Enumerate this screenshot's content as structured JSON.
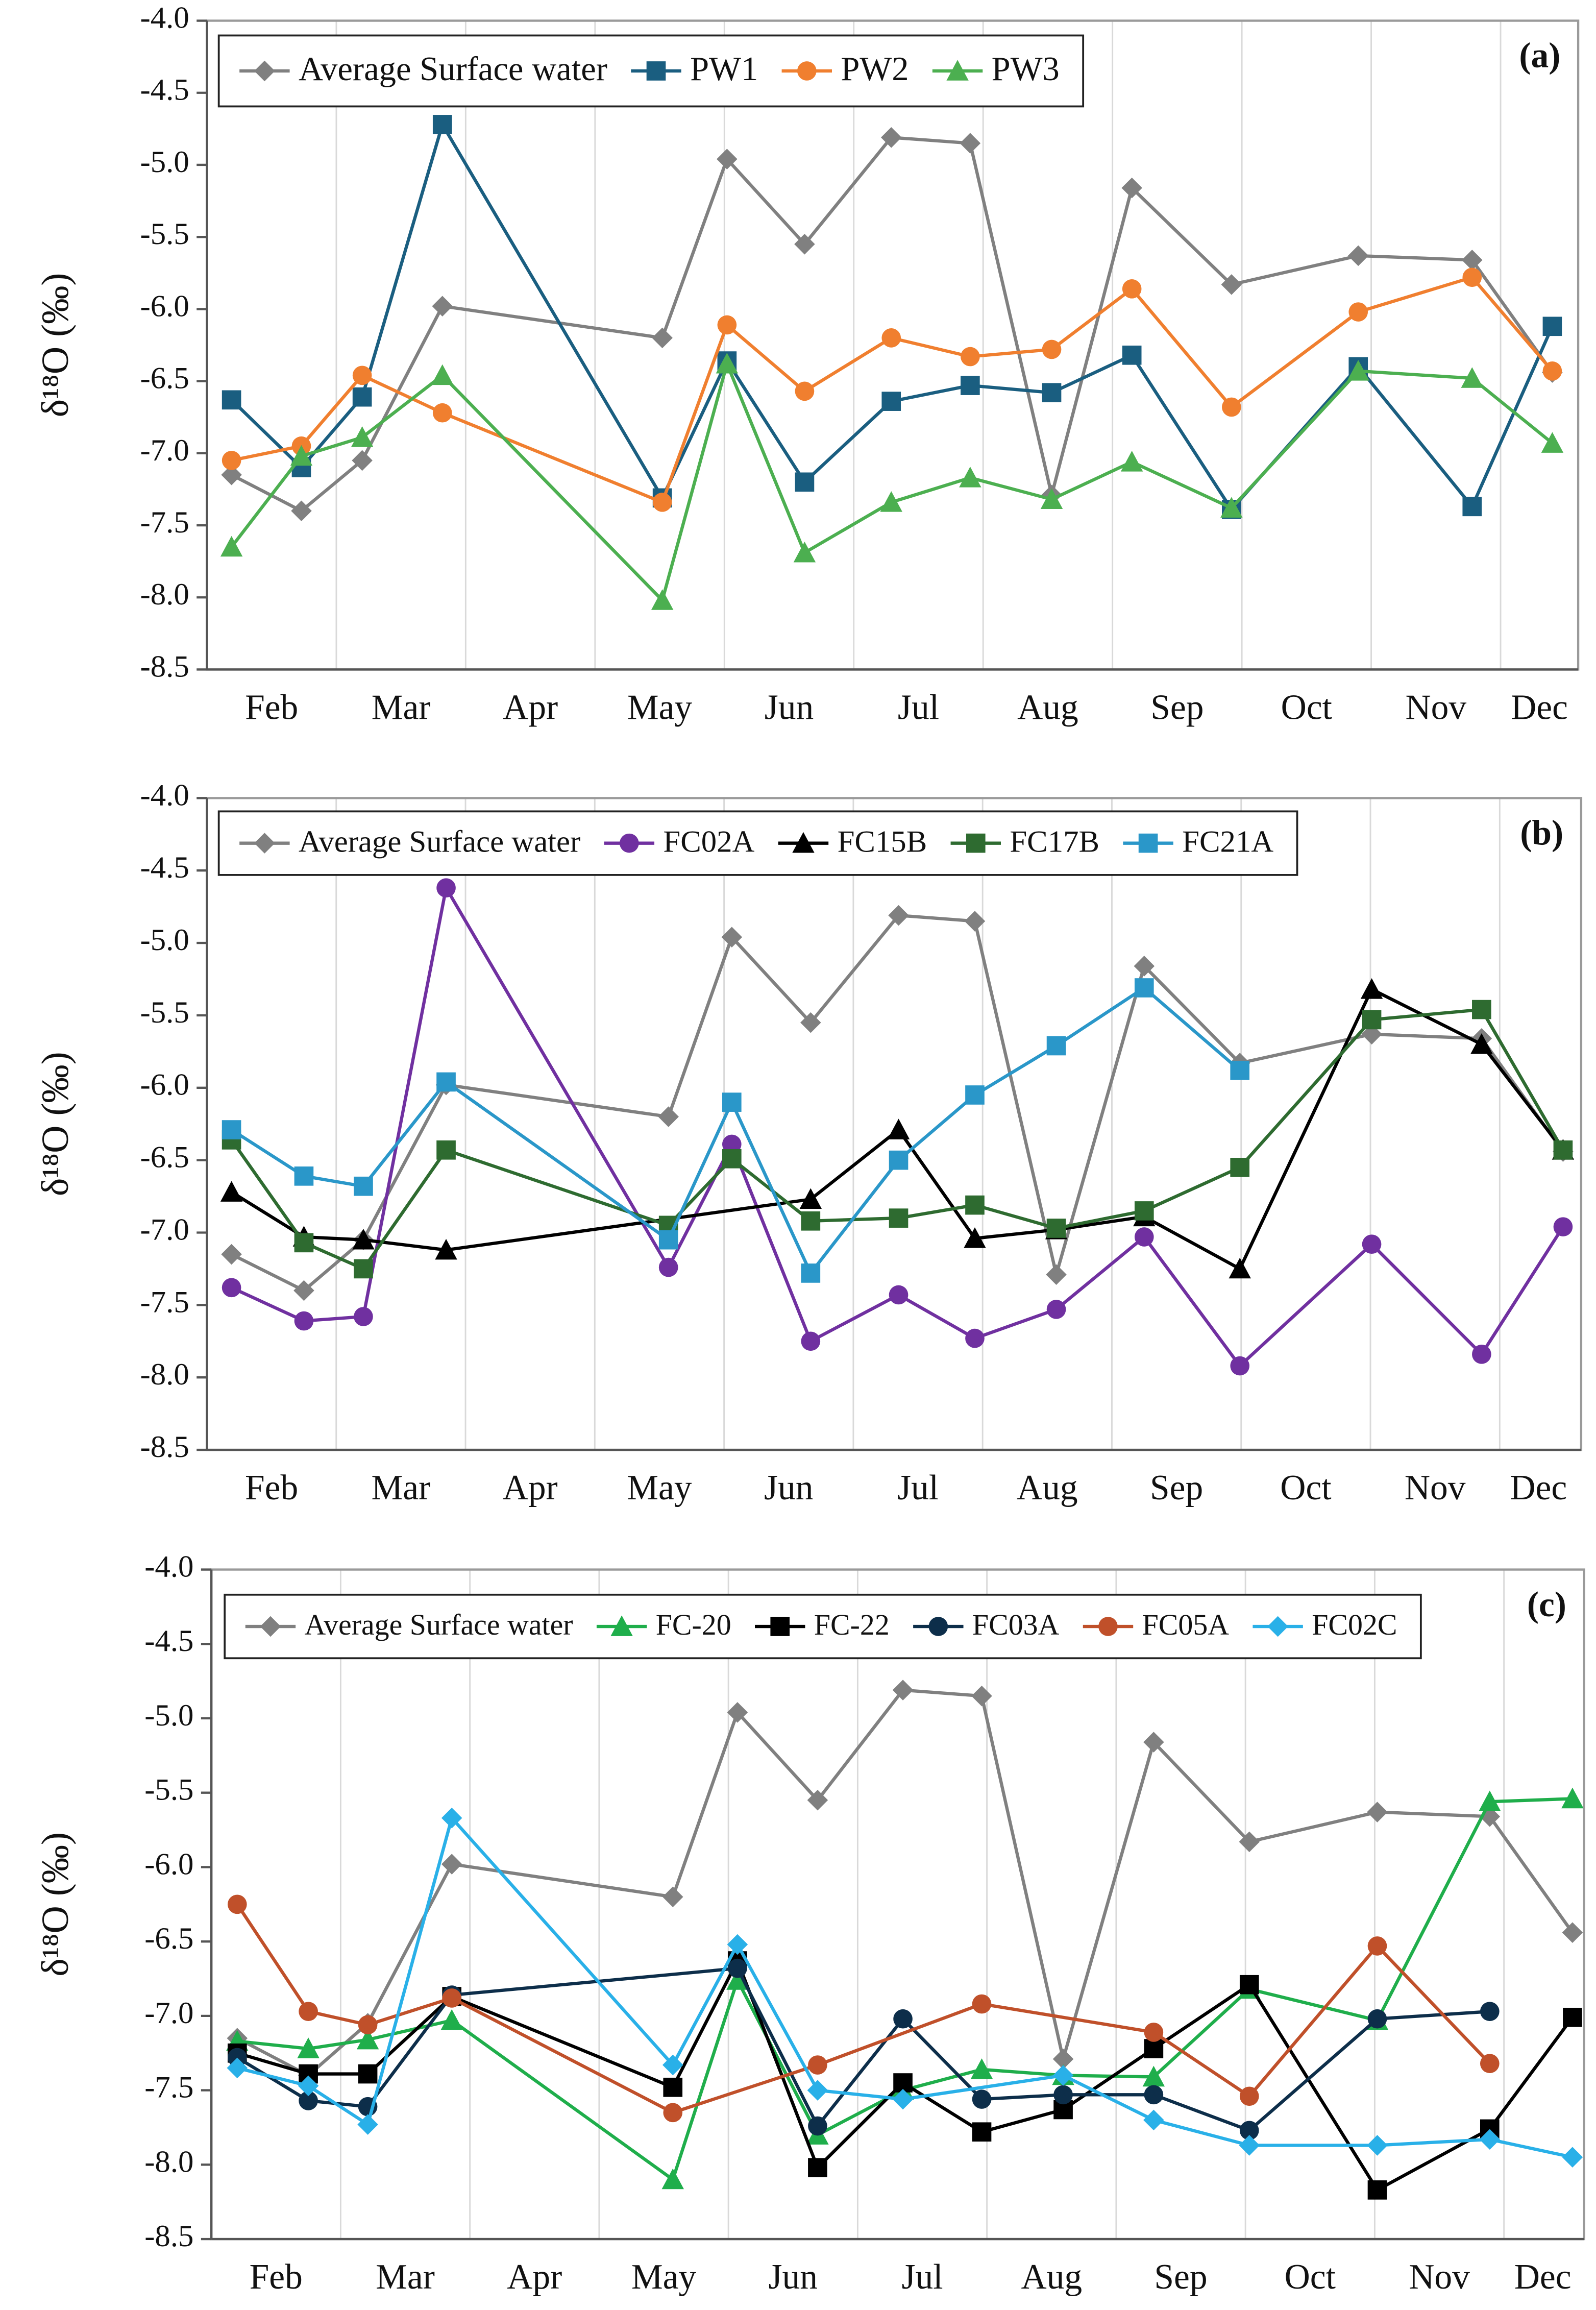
{
  "chart_data": [
    {
      "type": "line",
      "panel_label": "(a)",
      "y_label": "δ¹⁸O (‰)",
      "x": [
        2.19,
        2.73,
        3.2,
        3.82,
        5.52,
        6.02,
        6.62,
        7.29,
        7.9,
        8.53,
        9.15,
        9.92,
        10.9,
        11.78,
        12.4
      ],
      "xlim": [
        2,
        12.6
      ],
      "xticks": [
        {
          "value": 2.5,
          "label": "Feb"
        },
        {
          "value": 3.5,
          "label": "Mar"
        },
        {
          "value": 4.5,
          "label": "Apr"
        },
        {
          "value": 5.5,
          "label": "May"
        },
        {
          "value": 6.5,
          "label": "Jun"
        },
        {
          "value": 7.5,
          "label": "Jul"
        },
        {
          "value": 8.5,
          "label": "Aug"
        },
        {
          "value": 9.5,
          "label": "Sep"
        },
        {
          "value": 10.5,
          "label": "Oct"
        },
        {
          "value": 11.5,
          "label": "Nov"
        },
        {
          "value": 12.3,
          "label": "Dec"
        }
      ],
      "xgrid": [
        3,
        4,
        5,
        6,
        7,
        8,
        9,
        10,
        11,
        12
      ],
      "ylim": [
        -8.5,
        -4
      ],
      "yticks": [
        {
          "value": -4,
          "label": "-4.0"
        },
        {
          "value": -4.5,
          "label": "-4.5"
        },
        {
          "value": -5,
          "label": "-5.0"
        },
        {
          "value": -5.5,
          "label": "-5.5"
        },
        {
          "value": -6,
          "label": "-6.0"
        },
        {
          "value": -6.5,
          "label": "-6.5"
        },
        {
          "value": -7,
          "label": "-7.0"
        },
        {
          "value": -7.5,
          "label": "-7.5"
        },
        {
          "value": -8,
          "label": "-8.0"
        },
        {
          "value": -8.5,
          "label": "-8.5"
        }
      ],
      "series": [
        {
          "name": "Average Surface water",
          "color": "#808080",
          "marker": "diamond",
          "values": [
            -7.15,
            -7.4,
            -7.05,
            -5.98,
            -6.2,
            -4.96,
            -5.55,
            -4.81,
            -4.85,
            -7.29,
            -5.16,
            -5.83,
            -5.63,
            -5.66,
            -6.44
          ]
        },
        {
          "name": "PW1",
          "color": "#1a5e80",
          "marker": "square",
          "values": [
            -6.63,
            -7.1,
            -6.61,
            -4.72,
            -7.31,
            -6.36,
            -7.2,
            -6.64,
            -6.53,
            -6.58,
            -6.32,
            -7.39,
            -6.4,
            -7.37,
            -6.12
          ]
        },
        {
          "name": "PW2",
          "color": "#f07f2f",
          "marker": "circle",
          "values": [
            -7.05,
            -6.95,
            -6.46,
            -6.72,
            -7.34,
            -6.11,
            -6.57,
            -6.2,
            -6.33,
            -6.28,
            -5.86,
            -6.68,
            -6.02,
            -5.78,
            -6.43
          ]
        },
        {
          "name": "PW3",
          "color": "#4caf50",
          "marker": "triangle",
          "values": [
            -7.65,
            -7.02,
            -6.89,
            -6.46,
            -8.02,
            -6.38,
            -7.69,
            -7.34,
            -7.17,
            -7.32,
            -7.06,
            -7.38,
            -6.43,
            -6.48,
            -6.93
          ]
        }
      ]
    },
    {
      "type": "line",
      "panel_label": "(b)",
      "y_label": "δ¹⁸O (‰)",
      "x": [
        2.19,
        2.75,
        3.21,
        3.85,
        5.57,
        6.06,
        6.67,
        7.35,
        7.94,
        8.57,
        9.25,
        9.99,
        11.01,
        11.86,
        12.49
      ],
      "xlim": [
        2,
        12.63
      ],
      "xticks": [
        {
          "value": 2.5,
          "label": "Feb"
        },
        {
          "value": 3.5,
          "label": "Mar"
        },
        {
          "value": 4.5,
          "label": "Apr"
        },
        {
          "value": 5.5,
          "label": "May"
        },
        {
          "value": 6.5,
          "label": "Jun"
        },
        {
          "value": 7.5,
          "label": "Jul"
        },
        {
          "value": 8.5,
          "label": "Aug"
        },
        {
          "value": 9.5,
          "label": "Sep"
        },
        {
          "value": 10.5,
          "label": "Oct"
        },
        {
          "value": 11.5,
          "label": "Nov"
        },
        {
          "value": 12.3,
          "label": "Dec"
        }
      ],
      "xgrid": [
        3,
        4,
        5,
        6,
        7,
        8,
        9,
        10,
        11,
        12
      ],
      "ylim": [
        -8.5,
        -4
      ],
      "yticks": [
        {
          "value": -4,
          "label": "-4.0"
        },
        {
          "value": -4.5,
          "label": "-4.5"
        },
        {
          "value": -5,
          "label": "-5.0"
        },
        {
          "value": -5.5,
          "label": "-5.5"
        },
        {
          "value": -6,
          "label": "-6.0"
        },
        {
          "value": -6.5,
          "label": "-6.5"
        },
        {
          "value": -7,
          "label": "-7.0"
        },
        {
          "value": -7.5,
          "label": "-7.5"
        },
        {
          "value": -8,
          "label": "-8.0"
        },
        {
          "value": -8.5,
          "label": "-8.5"
        }
      ],
      "series": [
        {
          "name": "Average Surface water",
          "color": "#808080",
          "marker": "diamond",
          "values": [
            -7.15,
            -7.4,
            -7.05,
            -5.98,
            -6.2,
            -4.96,
            -5.55,
            -4.81,
            -4.85,
            -7.29,
            -5.16,
            -5.83,
            -5.63,
            -5.66,
            -6.44
          ]
        },
        {
          "name": "FC02A",
          "color": "#7030a0",
          "marker": "circle",
          "values": [
            -7.38,
            -7.61,
            -7.58,
            -4.62,
            -7.24,
            -6.39,
            -7.75,
            -7.43,
            -7.73,
            -7.53,
            -7.03,
            -7.92,
            -7.08,
            -7.84,
            -6.96
          ]
        },
        {
          "name": "FC15B",
          "color": "#000000",
          "marker": "triangle",
          "x": [
            2.19,
            2.75,
            3.21,
            3.85,
            6.67,
            7.35,
            7.94,
            8.57,
            9.25,
            9.99,
            11.01,
            11.86,
            12.49
          ],
          "values": [
            -6.72,
            -7.03,
            -7.05,
            -7.12,
            -6.77,
            -6.29,
            -7.04,
            -6.98,
            -6.89,
            -7.25,
            -5.32,
            -5.7,
            -6.43
          ]
        },
        {
          "name": "FC17B",
          "color": "#2e6b30",
          "marker": "square",
          "values": [
            -6.36,
            -7.07,
            -7.25,
            -6.43,
            -6.95,
            -6.49,
            -6.92,
            -6.9,
            -6.81,
            -6.97,
            -6.85,
            -6.55,
            -5.53,
            -5.46,
            -6.43
          ]
        },
        {
          "name": "FC21A",
          "color": "#2a97c9",
          "marker": "square",
          "values": [
            -6.29,
            -6.61,
            -6.68,
            -5.96,
            -7.05,
            -6.1,
            -7.28,
            -6.5,
            -6.05,
            -5.71,
            -5.31,
            -5.88,
            null,
            null,
            null
          ]
        }
      ]
    },
    {
      "type": "line",
      "panel_label": "(c)",
      "y_label": "δ¹⁸O (‰)",
      "x": [
        2.2,
        2.75,
        3.21,
        3.86,
        5.57,
        6.07,
        6.69,
        7.35,
        7.96,
        8.59,
        9.29,
        10.03,
        11.02,
        11.89,
        12.53
      ],
      "xlim": [
        2,
        12.62
      ],
      "xticks": [
        {
          "value": 2.5,
          "label": "Feb"
        },
        {
          "value": 3.5,
          "label": "Mar"
        },
        {
          "value": 4.5,
          "label": "Apr"
        },
        {
          "value": 5.5,
          "label": "May"
        },
        {
          "value": 6.5,
          "label": "Jun"
        },
        {
          "value": 7.5,
          "label": "Jul"
        },
        {
          "value": 8.5,
          "label": "Aug"
        },
        {
          "value": 9.5,
          "label": "Sep"
        },
        {
          "value": 10.5,
          "label": "Oct"
        },
        {
          "value": 11.5,
          "label": "Nov"
        },
        {
          "value": 12.3,
          "label": "Dec"
        }
      ],
      "xgrid": [
        3,
        4,
        5,
        6,
        7,
        8,
        9,
        10,
        11,
        12
      ],
      "ylim": [
        -8.5,
        -4
      ],
      "yticks": [
        {
          "value": -4,
          "label": "-4.0"
        },
        {
          "value": -4.5,
          "label": "-4.5"
        },
        {
          "value": -5,
          "label": "-5.0"
        },
        {
          "value": -5.5,
          "label": "-5.5"
        },
        {
          "value": -6,
          "label": "-6.0"
        },
        {
          "value": -6.5,
          "label": "-6.5"
        },
        {
          "value": -7,
          "label": "-7.0"
        },
        {
          "value": -7.5,
          "label": "-7.5"
        },
        {
          "value": -8,
          "label": "-8.0"
        },
        {
          "value": -8.5,
          "label": "-8.5"
        }
      ],
      "series": [
        {
          "name": "Average Surface water",
          "color": "#808080",
          "marker": "diamond",
          "values": [
            -7.15,
            -7.4,
            -7.05,
            -5.98,
            -6.2,
            -4.96,
            -5.55,
            -4.81,
            -4.85,
            -7.29,
            -5.16,
            -5.83,
            -5.63,
            -5.66,
            -6.44
          ]
        },
        {
          "name": "FC-20",
          "color": "#1fae4b",
          "marker": "triangle",
          "values": [
            -7.17,
            -7.22,
            -7.16,
            -7.03,
            -8.1,
            -6.76,
            -7.8,
            -7.5,
            -7.36,
            -7.4,
            -7.41,
            -6.82,
            -7.03,
            -5.56,
            -5.54
          ]
        },
        {
          "name": "FC-22",
          "color": "#000000",
          "marker": "square",
          "values": [
            -7.25,
            -7.39,
            -7.39,
            -6.87,
            -7.48,
            -6.63,
            -8.02,
            -7.45,
            -7.78,
            -7.63,
            -7.22,
            -6.79,
            -8.17,
            -7.76,
            -7.01
          ]
        },
        {
          "name": "FC03A",
          "color": "#0d2e4a",
          "marker": "circle",
          "x": [
            2.2,
            2.75,
            3.21,
            3.86,
            6.07,
            6.69,
            7.35,
            7.96,
            8.59,
            9.29,
            10.03,
            11.02,
            11.89
          ],
          "values": [
            -7.28,
            -7.57,
            -7.61,
            -6.86,
            -6.68,
            -7.74,
            -7.02,
            -7.56,
            -7.53,
            -7.53,
            -7.77,
            -7.02,
            -6.97
          ]
        },
        {
          "name": "FC05A",
          "color": "#c0502a",
          "marker": "circle",
          "x": [
            2.2,
            2.75,
            3.21,
            3.86,
            5.57,
            6.69,
            7.96,
            9.29,
            10.03,
            11.02,
            11.89
          ],
          "values": [
            -6.25,
            -6.97,
            -7.06,
            -6.88,
            -7.65,
            -7.33,
            -6.92,
            -7.11,
            -7.54,
            -6.53,
            -7.32
          ]
        },
        {
          "name": "FC02C",
          "color": "#29b0e8",
          "marker": "diamond",
          "x": [
            2.2,
            2.75,
            3.21,
            3.86,
            5.57,
            6.07,
            6.69,
            7.35,
            8.59,
            9.29,
            10.03,
            11.02,
            11.89,
            12.53
          ],
          "values": [
            -7.35,
            -7.47,
            -7.73,
            -5.67,
            -7.33,
            -6.52,
            -7.5,
            -7.56,
            -7.4,
            -7.7,
            -7.87,
            -7.87,
            -7.83,
            -7.95
          ]
        }
      ]
    }
  ]
}
